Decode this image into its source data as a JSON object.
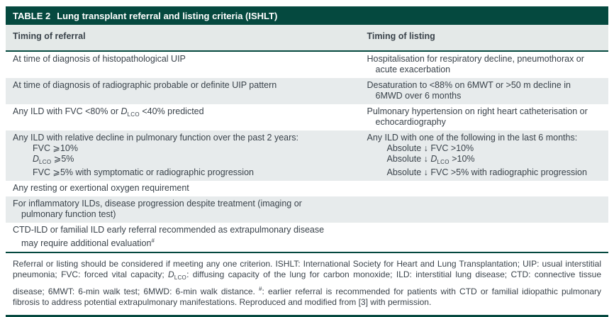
{
  "colors": {
    "teal_accent": "#05493f",
    "header_row_bg": "#e4e9e8",
    "alt_row_bg": "#e7ebec",
    "body_text": "#3a434b",
    "title_text": "#ffffff"
  },
  "table": {
    "title_label": "TABLE 2",
    "title_text": "Lung transplant referral and listing criteria (ISHLT)",
    "columns": [
      "Timing of referral",
      "Timing of listing"
    ],
    "rows": [
      {
        "referral": [
          {
            "t": "At time of diagnosis of histopathological UIP"
          }
        ],
        "listing": [
          {
            "t": "Hospitalisation for respiratory decline, pneumothorax or acute exacerbation"
          }
        ]
      },
      {
        "referral": [
          {
            "t": "At time of diagnosis of radiographic probable or definite UIP pattern"
          }
        ],
        "listing": [
          {
            "t": "Desaturation to <88% on 6MWT or >50 m decline in 6MWD over 6 months"
          }
        ]
      },
      {
        "referral": [
          {
            "t": "Any ILD with FVC <80% or {DLCO} <40% predicted"
          }
        ],
        "listing": [
          {
            "t": "Pulmonary hypertension on right heart catheterisation or echocardiography"
          }
        ]
      },
      {
        "referral": [
          {
            "t": "Any ILD with relative decline in pulmonary function over the past 2 years:"
          },
          {
            "t": "FVC ⩾10%",
            "sub": true
          },
          {
            "t": "{DLCO} ⩾5%",
            "sub": true
          },
          {
            "t": "FVC ⩾5% with symptomatic or radiographic progression",
            "sub": true
          }
        ],
        "listing": [
          {
            "t": "Any ILD with one of the following in the last 6 months:"
          },
          {
            "t": "Absolute ↓ FVC >10%",
            "sub": true
          },
          {
            "t": "Absolute ↓ {DLCO} >10%",
            "sub": true
          },
          {
            "t": "Absolute ↓ FVC >5% with radiographic progression",
            "sub": true
          }
        ]
      },
      {
        "referral": [
          {
            "t": "Any resting or exertional oxygen requirement"
          }
        ],
        "listing": []
      },
      {
        "referral": [
          {
            "t": "For inflammatory ILDs, disease progression despite treatment (imaging or pulmonary function test)"
          }
        ],
        "listing": []
      },
      {
        "referral": [
          {
            "t": "CTD-ILD or familial ILD early referral recommended as extrapulmonary disease may require additional evaluation{#}"
          }
        ],
        "listing": []
      }
    ],
    "footnote": "Referral or listing should be considered if meeting any one criterion. ISHLT: International Society for Heart and Lung Transplantation; UIP: usual interstitial pneumonia; FVC: forced vital capacity; {DLCO}: diffusing capacity of the lung for carbon monoxide; ILD: interstitial lung disease; CTD: connective tissue disease; 6MWT: 6-min walk test; 6MWD: 6-min walk distance. {#}: earlier referral is recommended for patients with CTD or familial idiopathic pulmonary fibrosis to address potential extrapulmonary manifestations. Reproduced and modified from [3] with permission."
  }
}
